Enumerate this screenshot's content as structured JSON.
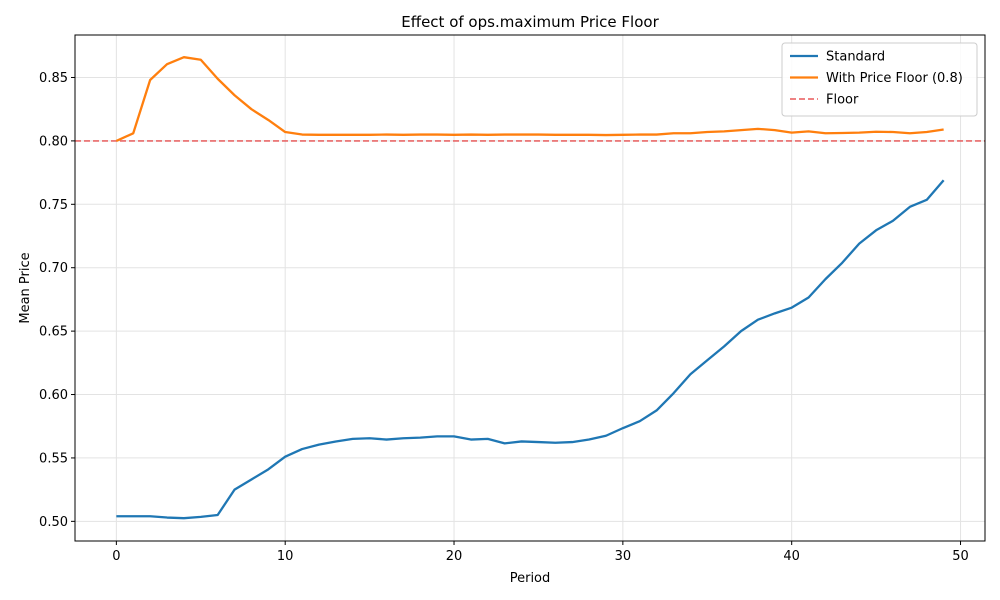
{
  "chart_data": {
    "type": "line",
    "title": "Effect of ops.maximum Price Floor",
    "xlabel": "Period",
    "ylabel": "Mean Price",
    "xlim": [
      -2.45,
      51.45
    ],
    "ylim": [
      0.4845,
      0.8835
    ],
    "xticks": [
      0,
      10,
      20,
      30,
      40,
      50
    ],
    "xtick_labels": [
      "0",
      "10",
      "20",
      "30",
      "40",
      "50"
    ],
    "yticks": [
      0.5,
      0.55,
      0.6,
      0.65,
      0.7,
      0.75,
      0.8,
      0.85
    ],
    "ytick_labels": [
      "0.50",
      "0.55",
      "0.60",
      "0.65",
      "0.70",
      "0.75",
      "0.80",
      "0.85"
    ],
    "grid": true,
    "legend_position": "top-right",
    "x": [
      0,
      1,
      2,
      3,
      4,
      5,
      6,
      7,
      8,
      9,
      10,
      11,
      12,
      13,
      14,
      15,
      16,
      17,
      18,
      19,
      20,
      21,
      22,
      23,
      24,
      25,
      26,
      27,
      28,
      29,
      30,
      31,
      32,
      33,
      34,
      35,
      36,
      37,
      38,
      39,
      40,
      41,
      42,
      43,
      44,
      45,
      46,
      47,
      48,
      49
    ],
    "series": [
      {
        "name": "Standard",
        "color": "#1f77b4",
        "style": "solid",
        "values": [
          0.504,
          0.504,
          0.504,
          0.503,
          0.5025,
          0.5035,
          0.505,
          0.525,
          0.533,
          0.541,
          0.551,
          0.557,
          0.5605,
          0.563,
          0.565,
          0.5655,
          0.5645,
          0.5655,
          0.566,
          0.567,
          0.567,
          0.5645,
          0.565,
          0.5615,
          0.563,
          0.5625,
          0.562,
          0.5625,
          0.5645,
          0.5675,
          0.5735,
          0.579,
          0.5875,
          0.601,
          0.616,
          0.627,
          0.638,
          0.65,
          0.659,
          0.664,
          0.6685,
          0.6765,
          0.691,
          0.704,
          0.719,
          0.7295,
          0.737,
          0.748,
          0.7535,
          0.769
        ]
      },
      {
        "name": "With Price Floor (0.8)",
        "color": "#ff7f0e",
        "style": "solid",
        "values": [
          0.8,
          0.806,
          0.848,
          0.8605,
          0.866,
          0.864,
          0.849,
          0.836,
          0.825,
          0.8165,
          0.807,
          0.805,
          0.8048,
          0.8048,
          0.8048,
          0.8048,
          0.805,
          0.8048,
          0.805,
          0.805,
          0.8048,
          0.805,
          0.8048,
          0.805,
          0.805,
          0.805,
          0.8048,
          0.8048,
          0.8048,
          0.8046,
          0.8048,
          0.805,
          0.805,
          0.806,
          0.806,
          0.807,
          0.8075,
          0.8085,
          0.8095,
          0.8085,
          0.8065,
          0.8075,
          0.806,
          0.8062,
          0.8065,
          0.8072,
          0.807,
          0.806,
          0.807,
          0.809
        ]
      }
    ],
    "reference_lines": [
      {
        "name": "Floor",
        "y": 0.8,
        "color": "#e8595a",
        "style": "dashed"
      }
    ]
  }
}
